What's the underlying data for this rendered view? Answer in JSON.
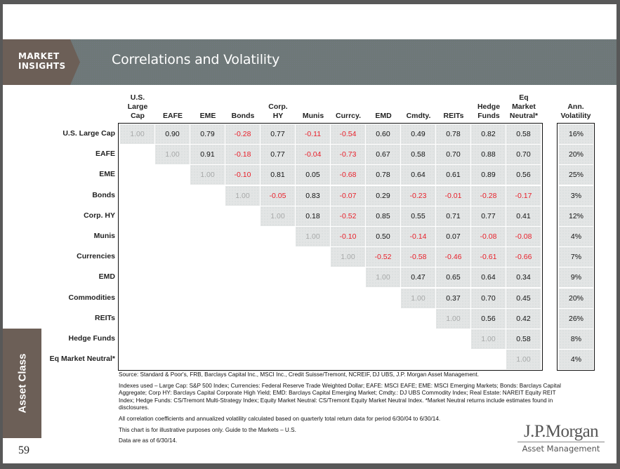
{
  "header": {
    "tag_line1": "MARKET",
    "tag_line2": "INSIGHTS",
    "title": "Correlations and Volatility"
  },
  "sidebar": {
    "label": "Asset Class"
  },
  "page_number": "59",
  "colors": {
    "brand_brown": "#6c5f57",
    "banner_gray": "#6e7878",
    "negative": "#e8202a",
    "positive": "#111111",
    "diagonal": "#a6a8a8",
    "cell_bg": "#e3e5e5"
  },
  "chart_data": {
    "type": "table",
    "title": "Correlations and Volatility",
    "column_headers": [
      [
        "U.S.",
        "Large",
        "Cap"
      ],
      [
        "EAFE"
      ],
      [
        "EME"
      ],
      [
        "Bonds"
      ],
      [
        "Corp.",
        "HY"
      ],
      [
        "Munis"
      ],
      [
        "Currcy."
      ],
      [
        "EMD"
      ],
      [
        "Cmdty."
      ],
      [
        "REITs"
      ],
      [
        "Hedge",
        "Funds"
      ],
      [
        "Eq",
        "Market",
        "Neutral*"
      ]
    ],
    "volatility_header": [
      "Ann.",
      "Volatility"
    ],
    "row_labels": [
      "U.S. Large Cap",
      "EAFE",
      "EME",
      "Bonds",
      "Corp. HY",
      "Munis",
      "Currencies",
      "EMD",
      "Commodities",
      "REITs",
      "Hedge Funds",
      "Eq Market Neutral*"
    ],
    "matrix": [
      [
        "1.00",
        "0.90",
        "0.79",
        "-0.28",
        "0.77",
        "-0.11",
        "-0.54",
        "0.60",
        "0.49",
        "0.78",
        "0.82",
        "0.58"
      ],
      [
        "1.00",
        "0.91",
        "-0.18",
        "0.77",
        "-0.04",
        "-0.73",
        "0.67",
        "0.58",
        "0.70",
        "0.88",
        "0.70"
      ],
      [
        "1.00",
        "-0.10",
        "0.81",
        "0.05",
        "-0.68",
        "0.78",
        "0.64",
        "0.61",
        "0.89",
        "0.56"
      ],
      [
        "1.00",
        "-0.05",
        "0.83",
        "-0.07",
        "0.29",
        "-0.23",
        "-0.01",
        "-0.28",
        "-0.17"
      ],
      [
        "1.00",
        "0.18",
        "-0.52",
        "0.85",
        "0.55",
        "0.71",
        "0.77",
        "0.41"
      ],
      [
        "1.00",
        "-0.10",
        "0.50",
        "-0.14",
        "0.07",
        "-0.08",
        "-0.08"
      ],
      [
        "1.00",
        "-0.52",
        "-0.58",
        "-0.46",
        "-0.61",
        "-0.66"
      ],
      [
        "1.00",
        "0.47",
        "0.65",
        "0.64",
        "0.34"
      ],
      [
        "1.00",
        "0.37",
        "0.70",
        "0.45"
      ],
      [
        "1.00",
        "0.56",
        "0.42"
      ],
      [
        "1.00",
        "0.58"
      ],
      [
        "1.00"
      ]
    ],
    "annual_volatility": [
      "16%",
      "20%",
      "25%",
      "3%",
      "12%",
      "4%",
      "7%",
      "9%",
      "20%",
      "26%",
      "8%",
      "4%"
    ]
  },
  "footnotes": {
    "source": "Source: Standard & Poor's, FRB, Barclays Capital Inc., MSCI Inc., Credit Suisse/Tremont, NCREIF, DJ UBS, J.P. Morgan Asset Management.",
    "indexes": "Indexes used – Large Cap: S&P 500 Index; Currencies: Federal Reserve Trade Weighted Dollar; EAFE: MSCI EAFE; EME: MSCI Emerging Markets; Bonds: Barclays Capital Aggregate; Corp HY: Barclays Capital Corporate High Yield; EMD: Barclays Capital Emerging Market; Cmdty.: DJ UBS Commodity Index; Real Estate: NAREIT Equity REIT Index; Hedge Funds: CS/Tremont Multi-Strategy Index; Equity Market Neutral: CS/Tremont Equity Market Neutral Index. *Market Neutral returns include estimates found in disclosures.",
    "methodology": "All correlation coefficients and annualized volatility calculated based on quarterly total return data for period 6/30/04 to 6/30/14.",
    "disclaimer": "This chart is for illustrative purposes only. Guide to the Markets – U.S.",
    "data_date": "Data are as of 6/30/14."
  },
  "logo": {
    "main": "J.P.Morgan",
    "sub": "Asset Management"
  }
}
